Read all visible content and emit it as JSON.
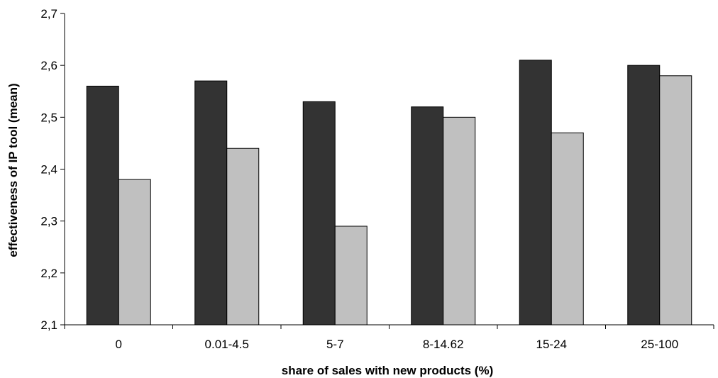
{
  "chart_data": {
    "type": "bar",
    "categories": [
      "0",
      "0.01-4.5",
      "5-7",
      "8-14.62",
      "15-24",
      "25-100"
    ],
    "series": [
      {
        "color": "#333333",
        "values": [
          2.56,
          2.57,
          2.53,
          2.52,
          2.61,
          2.6
        ]
      },
      {
        "color": "#c0c0c0",
        "values": [
          2.38,
          2.44,
          2.29,
          2.5,
          2.47,
          2.58
        ]
      }
    ],
    "xlabel": "share of sales with new products (%)",
    "ylabel": "effectiveness of IP tool (mean)",
    "ylim": [
      2.1,
      2.7
    ],
    "yticks": [
      2.1,
      2.2,
      2.3,
      2.4,
      2.5,
      2.6,
      2.7
    ],
    "ytick_labels": [
      "2,1",
      "2,2",
      "2,3",
      "2,4",
      "2,5",
      "2,6",
      "2,7"
    ],
    "grid": false,
    "legend": "none"
  }
}
